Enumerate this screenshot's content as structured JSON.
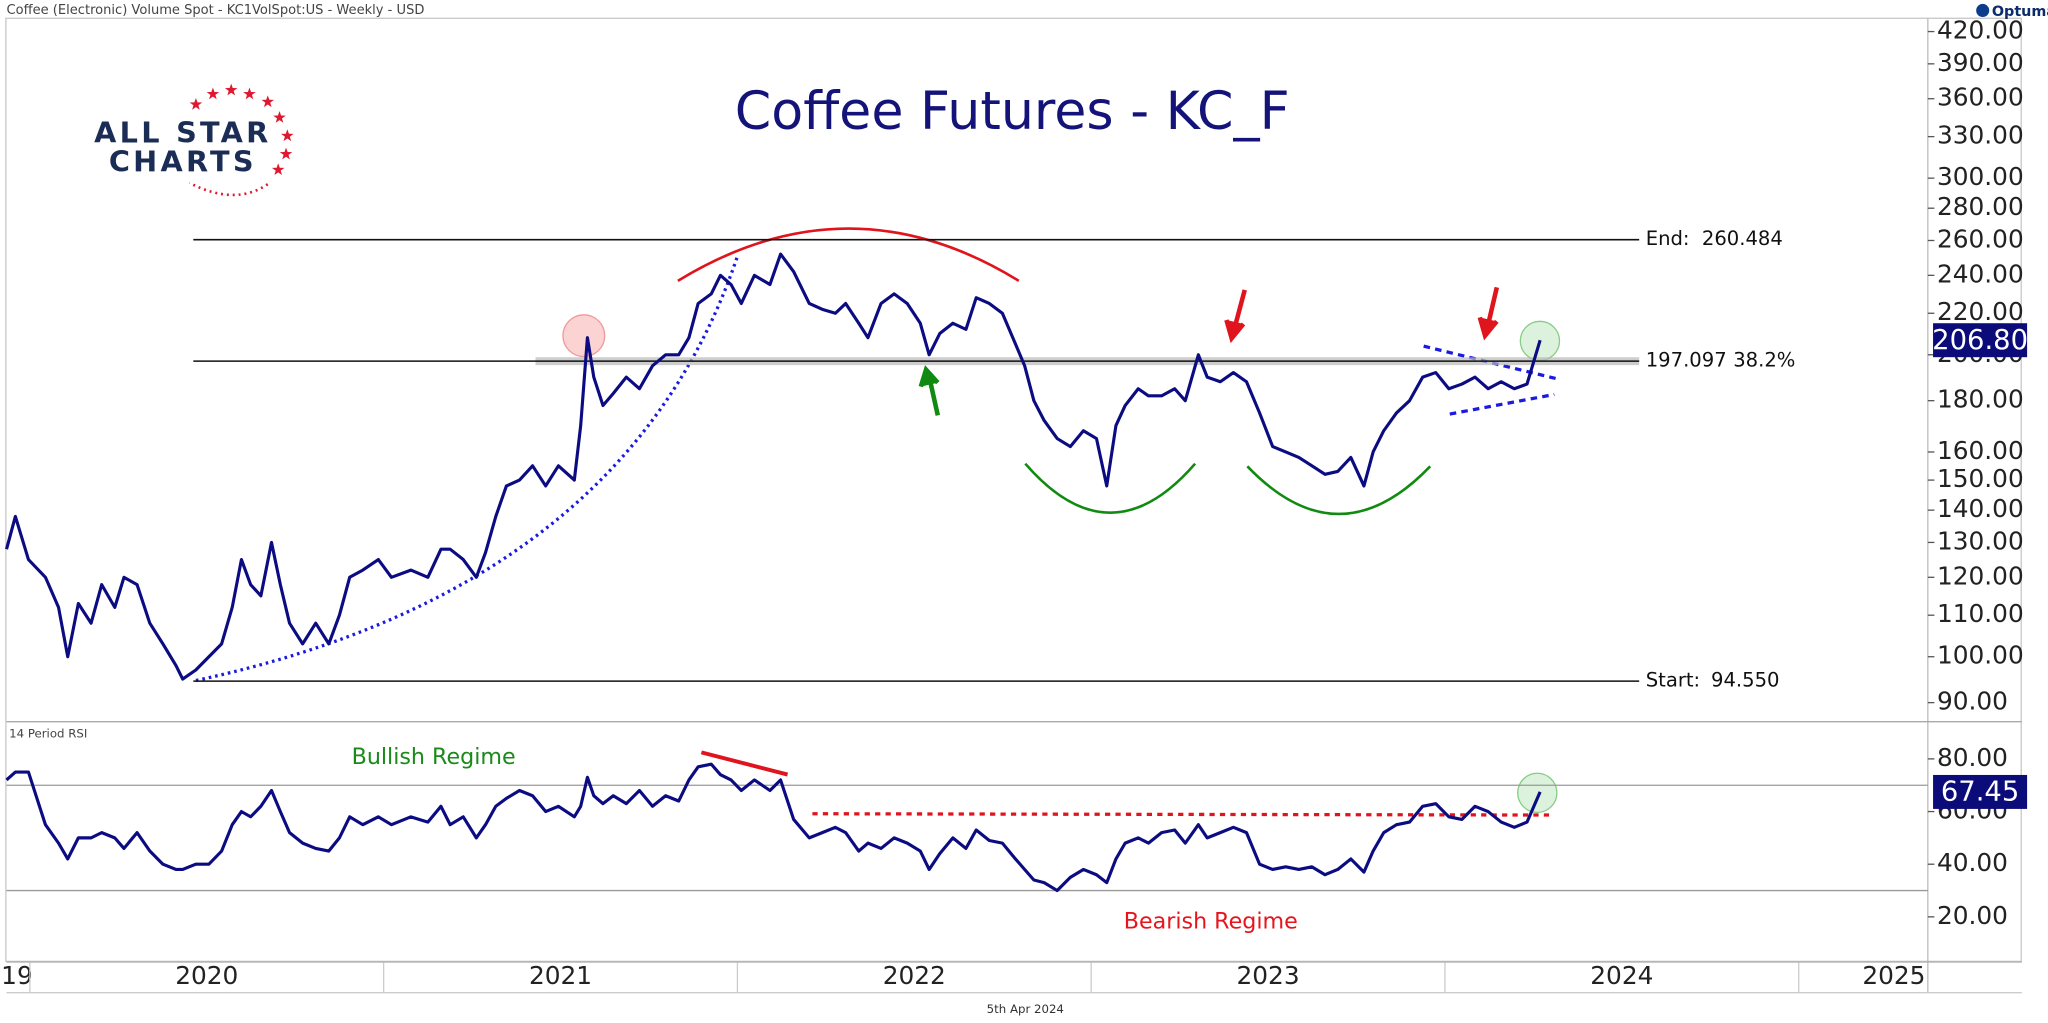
{
  "header": {
    "source": "Coffee (Electronic) Volume Spot - KC1VolSpot:US - Weekly - USD",
    "brand": "Optuma",
    "logo": [
      "ALL STAR",
      "CHARTS"
    ]
  },
  "footer": {
    "date": "5th Apr 2024"
  },
  "chart_data": [
    {
      "type": "line",
      "title": "Coffee Futures - KC_F",
      "log_scale": true,
      "xlim": [
        2019.934,
        2025.365
      ],
      "ylim": [
        86.8,
        433
      ],
      "yticks": [
        {
          "value": 420,
          "label": "420.00"
        },
        {
          "value": 390,
          "label": "390.00"
        },
        {
          "value": 360,
          "label": "360.00"
        },
        {
          "value": 330,
          "label": "330.00"
        },
        {
          "value": 300,
          "label": "300.00"
        },
        {
          "value": 280,
          "label": "280.00"
        },
        {
          "value": 260,
          "label": "260.00"
        },
        {
          "value": 240,
          "label": "240.00"
        },
        {
          "value": 220,
          "label": "220.00"
        },
        {
          "value": 200,
          "label": "200.00"
        },
        {
          "value": 180,
          "label": "180.00"
        },
        {
          "value": 160,
          "label": "160.00"
        },
        {
          "value": 150,
          "label": "150.00"
        },
        {
          "value": 140,
          "label": "140.00"
        },
        {
          "value": 130,
          "label": "130.00"
        },
        {
          "value": 120,
          "label": "120.00"
        },
        {
          "value": 110,
          "label": "110.00"
        },
        {
          "value": 100,
          "label": "100.00"
        },
        {
          "value": 90,
          "label": "90.00"
        }
      ],
      "x": [
        2019.934,
        2019.959,
        2019.996,
        2020.044,
        2020.081,
        2020.107,
        2020.137,
        2020.173,
        2020.203,
        2020.24,
        2020.266,
        2020.303,
        2020.339,
        2020.376,
        2020.413,
        2020.432,
        2020.469,
        2020.506,
        2020.542,
        2020.572,
        2020.598,
        2020.624,
        2020.653,
        2020.683,
        2020.708,
        2020.734,
        2020.771,
        2020.808,
        2020.845,
        2020.875,
        2020.904,
        2020.941,
        2020.985,
        2021.022,
        2021.077,
        2021.125,
        2021.162,
        2021.188,
        2021.225,
        2021.262,
        2021.288,
        2021.317,
        2021.347,
        2021.384,
        2021.421,
        2021.458,
        2021.494,
        2021.539,
        2021.557,
        2021.576,
        2021.594,
        2021.62,
        2021.649,
        2021.686,
        2021.723,
        2021.76,
        2021.797,
        2021.834,
        2021.863,
        2021.889,
        2021.926,
        2021.952,
        2021.982,
        2022.011,
        2022.048,
        2022.092,
        2022.122,
        2022.159,
        2022.203,
        2022.24,
        2022.277,
        2022.306,
        2022.343,
        2022.369,
        2022.406,
        2022.443,
        2022.48,
        2022.517,
        2022.542,
        2022.572,
        2022.609,
        2022.646,
        2022.675,
        2022.712,
        2022.749,
        2022.786,
        2022.812,
        2022.838,
        2022.867,
        2022.904,
        2022.941,
        2022.978,
        2023.015,
        2023.044,
        2023.07,
        2023.096,
        2023.133,
        2023.162,
        2023.199,
        2023.236,
        2023.266,
        2023.303,
        2023.328,
        2023.365,
        2023.402,
        2023.439,
        2023.476,
        2023.513,
        2023.55,
        2023.587,
        2023.624,
        2023.661,
        2023.697,
        2023.734,
        2023.771,
        2023.797,
        2023.827,
        2023.863,
        2023.9,
        2023.937,
        2023.974,
        2024.011,
        2024.048,
        2024.085,
        2024.122,
        2024.159,
        2024.196,
        2024.232,
        2024.269
      ],
      "series": [
        {
          "color": "#0c0c82",
          "values": [
            128,
            138,
            125,
            120,
            112,
            100,
            113,
            108,
            118,
            112,
            120,
            118,
            108,
            103,
            98,
            95,
            97,
            100,
            103,
            112,
            125,
            118,
            115,
            130,
            118,
            108,
            103,
            108,
            103,
            110,
            120,
            122,
            125,
            120,
            122,
            120,
            128,
            128,
            125,
            120,
            127,
            138,
            148,
            150,
            155,
            148,
            155,
            150,
            170,
            208,
            190,
            178,
            183,
            190,
            185,
            195,
            200,
            200,
            208,
            225,
            230,
            240,
            235,
            225,
            240,
            235,
            252,
            242,
            225,
            222,
            220,
            225,
            215,
            208,
            225,
            230,
            225,
            215,
            200,
            210,
            215,
            212,
            228,
            225,
            220,
            205,
            195,
            180,
            172,
            165,
            162,
            168,
            165,
            148,
            170,
            178,
            185,
            182,
            182,
            185,
            180,
            200,
            190,
            188,
            192,
            188,
            175,
            162,
            160,
            158,
            155,
            152,
            153,
            158,
            148,
            160,
            168,
            175,
            180,
            190,
            192,
            185,
            187,
            190,
            185,
            188,
            185,
            187,
            206.8
          ]
        }
      ],
      "last_value_label": "206.80",
      "levels": [
        {
          "name": "End:",
          "value": 260.484
        },
        {
          "value": 197.097,
          "note": "38.2%"
        },
        {
          "name": "Start:",
          "value": 94.55,
          "value_label": "94.550"
        }
      ]
    },
    {
      "type": "line",
      "title": "14 Period RSI",
      "xlim": [
        2019.934,
        2025.365
      ],
      "ylim": [
        3.6,
        92.9
      ],
      "yticks": [
        {
          "value": 80,
          "label": "80.00"
        },
        {
          "value": 60,
          "label": "60.00"
        },
        {
          "value": 40,
          "label": "40.00"
        },
        {
          "value": 20,
          "label": "20.00"
        }
      ],
      "xticks": [
        {
          "value": 2019,
          "label": "19"
        },
        2020,
        2021,
        2022,
        2023,
        2024,
        2025
      ],
      "reference_lines": [
        70,
        30
      ],
      "annotations": [
        "Bullish Regime",
        "Bearish Regime"
      ],
      "x": [
        2019.934,
        2019.959,
        2019.996,
        2020.044,
        2020.081,
        2020.107,
        2020.137,
        2020.173,
        2020.203,
        2020.24,
        2020.266,
        2020.303,
        2020.339,
        2020.376,
        2020.413,
        2020.432,
        2020.469,
        2020.506,
        2020.542,
        2020.572,
        2020.598,
        2020.624,
        2020.653,
        2020.683,
        2020.708,
        2020.734,
        2020.771,
        2020.808,
        2020.845,
        2020.875,
        2020.904,
        2020.941,
        2020.985,
        2021.022,
        2021.077,
        2021.125,
        2021.162,
        2021.188,
        2021.225,
        2021.262,
        2021.288,
        2021.317,
        2021.347,
        2021.384,
        2021.421,
        2021.458,
        2021.494,
        2021.539,
        2021.557,
        2021.576,
        2021.594,
        2021.62,
        2021.649,
        2021.686,
        2021.723,
        2021.76,
        2021.797,
        2021.834,
        2021.863,
        2021.889,
        2021.926,
        2021.952,
        2021.982,
        2022.011,
        2022.048,
        2022.092,
        2022.122,
        2022.159,
        2022.203,
        2022.24,
        2022.277,
        2022.306,
        2022.343,
        2022.369,
        2022.406,
        2022.443,
        2022.48,
        2022.517,
        2022.542,
        2022.572,
        2022.609,
        2022.646,
        2022.675,
        2022.712,
        2022.749,
        2022.786,
        2022.812,
        2022.838,
        2022.867,
        2022.904,
        2022.941,
        2022.978,
        2023.015,
        2023.044,
        2023.07,
        2023.096,
        2023.133,
        2023.162,
        2023.199,
        2023.236,
        2023.266,
        2023.303,
        2023.328,
        2023.365,
        2023.402,
        2023.439,
        2023.476,
        2023.513,
        2023.55,
        2023.587,
        2023.624,
        2023.661,
        2023.697,
        2023.734,
        2023.771,
        2023.797,
        2023.827,
        2023.863,
        2023.9,
        2023.937,
        2023.974,
        2024.011,
        2024.048,
        2024.085,
        2024.122,
        2024.159,
        2024.196,
        2024.232,
        2024.269
      ],
      "series": [
        {
          "color": "#0c0c82",
          "values": [
            72,
            75,
            75,
            55,
            48,
            42,
            50,
            50,
            52,
            50,
            46,
            52,
            45,
            40,
            38,
            38,
            40,
            40,
            45,
            55,
            60,
            58,
            62,
            68,
            60,
            52,
            48,
            46,
            45,
            50,
            58,
            55,
            58,
            55,
            58,
            56,
            62,
            55,
            58,
            50,
            55,
            62,
            65,
            68,
            66,
            60,
            62,
            58,
            62,
            73,
            66,
            63,
            66,
            63,
            68,
            62,
            66,
            64,
            72,
            77,
            78,
            74,
            72,
            68,
            72,
            68,
            72,
            57,
            50,
            52,
            54,
            52,
            45,
            48,
            46,
            50,
            48,
            45,
            38,
            44,
            50,
            46,
            53,
            49,
            48,
            42,
            38,
            34,
            33,
            30,
            35,
            38,
            36,
            33,
            42,
            48,
            50,
            48,
            52,
            53,
            48,
            55,
            50,
            52,
            54,
            52,
            40,
            38,
            39,
            38,
            39,
            36,
            38,
            42,
            37,
            45,
            52,
            55,
            56,
            62,
            63,
            58,
            57,
            62,
            60,
            56,
            54,
            56,
            67.45
          ]
        }
      ],
      "last_value_label": "67.45"
    }
  ]
}
